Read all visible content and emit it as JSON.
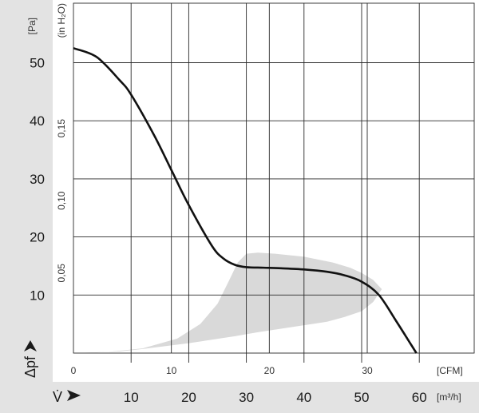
{
  "chart_data": {
    "type": "line",
    "colors": {
      "curve": "#111111",
      "operating_area": "#d9d9d9",
      "side_panel": "#e3e3e3",
      "grid": "#2a2a2a"
    },
    "grid": true,
    "x_axis_primary": {
      "unit_label": "[m³/h]",
      "symbol": "V̇",
      "range": [
        0,
        62
      ],
      "tick_values": [
        10,
        20,
        30,
        40,
        50,
        60
      ],
      "tick_labels": [
        "10",
        "20",
        "30",
        "40",
        "50",
        "60"
      ]
    },
    "x_axis_secondary": {
      "unit_label": "[CFM]",
      "tick_values": [
        0,
        10,
        20,
        30
      ],
      "tick_labels": [
        "0",
        "10",
        "20",
        "30"
      ]
    },
    "y_axis_primary": {
      "unit_label": "[Pa]",
      "symbol": "Δpf",
      "range": [
        0,
        60
      ],
      "tick_values": [
        10,
        20,
        30,
        40,
        50
      ],
      "tick_labels": [
        "10",
        "20",
        "30",
        "40",
        "50"
      ]
    },
    "y_axis_secondary": {
      "unit_label": "(in H₂O)",
      "tick_values": [
        0.05,
        0.1,
        0.15
      ],
      "tick_labels": [
        "0,05",
        "0,10",
        "0,15"
      ]
    },
    "series": [
      {
        "x": [
          0,
          4,
          8,
          10,
          14,
          17,
          20,
          24,
          26,
          28,
          30,
          33,
          36,
          40,
          44,
          47,
          50,
          53,
          56,
          59.5
        ],
        "y": [
          52.5,
          51,
          47,
          44.5,
          37.5,
          31.5,
          25.5,
          18.5,
          16.3,
          15.2,
          14.8,
          14.7,
          14.6,
          14.4,
          14.0,
          13.4,
          12.3,
          10.0,
          5.5,
          0
        ]
      }
    ],
    "operating_area": {
      "upper_x": [
        0,
        6,
        12,
        18,
        22,
        25,
        27,
        28.5,
        30,
        32,
        35,
        40,
        45,
        48,
        50,
        52,
        53.5
      ],
      "upper_y": [
        0,
        0.2,
        0.8,
        2.5,
        5.0,
        8.5,
        12.5,
        15.6,
        17.1,
        17.3,
        17.1,
        16.6,
        15.6,
        14.7,
        13.8,
        12.6,
        11.0
      ],
      "lower_x": [
        53.5,
        52,
        50,
        47,
        44,
        40,
        36,
        32,
        28,
        24,
        20,
        16,
        12,
        8,
        4,
        0
      ],
      "lower_y": [
        11.0,
        8.8,
        7.2,
        6.2,
        5.4,
        4.8,
        4.2,
        3.6,
        2.9,
        2.3,
        1.7,
        1.2,
        0.7,
        0.3,
        0.1,
        0
      ]
    }
  }
}
